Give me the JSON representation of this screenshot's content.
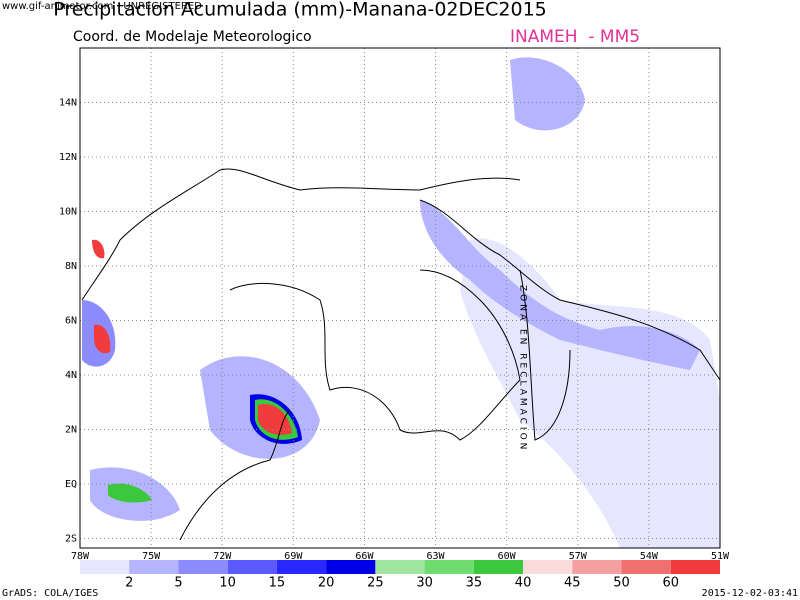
{
  "watermark": "www.gif-animator.com - UNREGISTERED",
  "title": "Precipitacion Acumulada (mm)-Manana-02DEC2015",
  "subtitle": "Coord. de Modelaje Meteorologico",
  "source": "INAMEH  - MM5",
  "map": {
    "xlim": [
      -78,
      -51
    ],
    "ylim": [
      -2.35,
      16
    ],
    "xticks": [
      {
        "value": -78,
        "label": "78W"
      },
      {
        "value": -75,
        "label": "75W"
      },
      {
        "value": -72,
        "label": "72W"
      },
      {
        "value": -69,
        "label": "69W"
      },
      {
        "value": -66,
        "label": "66W"
      },
      {
        "value": -63,
        "label": "63W"
      },
      {
        "value": -60,
        "label": "60W"
      },
      {
        "value": -57,
        "label": "57W"
      },
      {
        "value": -54,
        "label": "54W"
      },
      {
        "value": -51,
        "label": "51W"
      }
    ],
    "yticks": [
      {
        "value": -2,
        "label": "2S"
      },
      {
        "value": 0,
        "label": "EQ"
      },
      {
        "value": 2,
        "label": "2N"
      },
      {
        "value": 4,
        "label": "4N"
      },
      {
        "value": 6,
        "label": "6N"
      },
      {
        "value": 8,
        "label": "8N"
      },
      {
        "value": 10,
        "label": "10N"
      },
      {
        "value": 12,
        "label": "12N"
      },
      {
        "value": 14,
        "label": "14N"
      }
    ],
    "grid": true,
    "zone_label": "ZONA EN RECLAMACION"
  },
  "legend": {
    "levels": [
      2,
      5,
      10,
      15,
      20,
      25,
      30,
      35,
      40,
      45,
      50,
      60
    ],
    "colors": [
      "#e6e6ff",
      "#b4b4ff",
      "#8c8cff",
      "#5a5aff",
      "#2828ff",
      "#0000e6",
      "#a0e6a0",
      "#6edc6e",
      "#3cc83c",
      "#fadcdc",
      "#f5a0a0",
      "#f07070",
      "#f03c3c"
    ]
  },
  "footer_left": "GrADS: COLA/IGES",
  "footer_right": "2015-12-02-03:41"
}
